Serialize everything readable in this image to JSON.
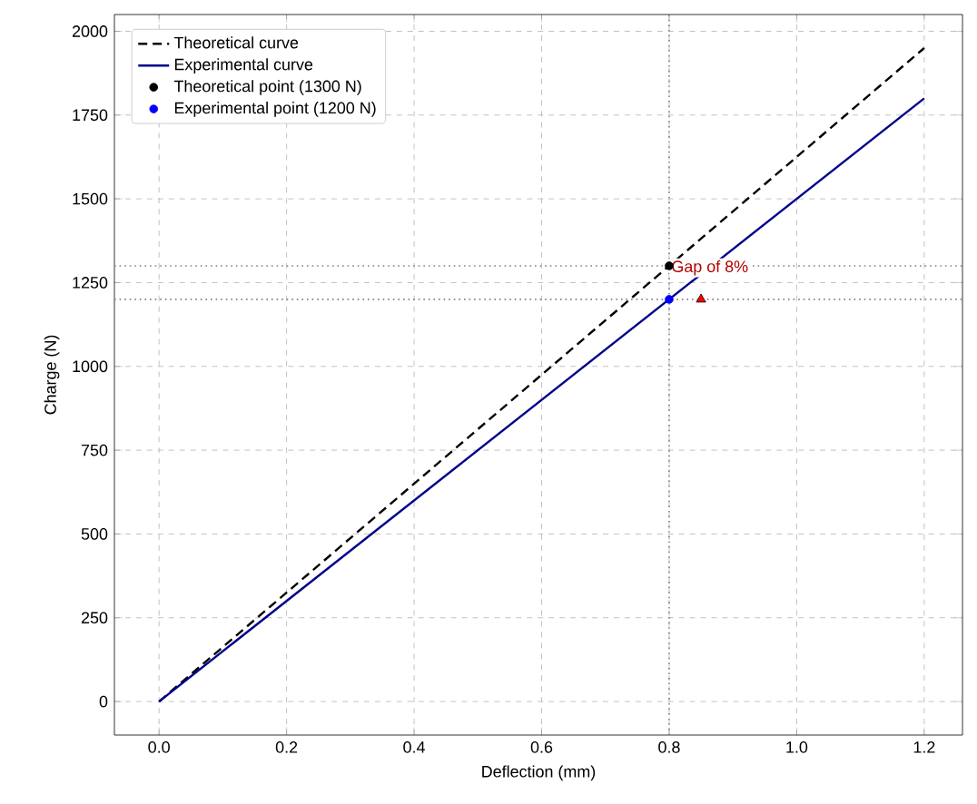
{
  "chart_data": {
    "type": "line",
    "xlabel": "Deflection (mm)",
    "ylabel": "Charge (N)",
    "xlim": [
      -0.07,
      1.26
    ],
    "ylim": [
      -100,
      2050
    ],
    "xticks": [
      {
        "value": 0,
        "label": "0.0"
      },
      {
        "value": 0.2,
        "label": "0.2"
      },
      {
        "value": 0.4,
        "label": "0.4"
      },
      {
        "value": 0.6,
        "label": "0.6"
      },
      {
        "value": 0.8,
        "label": "0.8"
      },
      {
        "value": 1.0,
        "label": "1.0"
      },
      {
        "value": 1.2,
        "label": "1.2"
      }
    ],
    "yticks": [
      0,
      250,
      500,
      750,
      1000,
      1250,
      1500,
      1750,
      2000
    ],
    "grid": true,
    "legend": "top left",
    "series": [
      {
        "name": "Theoretical curve",
        "line_style": "dashed",
        "color": "#000000",
        "x": [
          0,
          1.2
        ],
        "values": [
          0,
          1950
        ]
      },
      {
        "name": "Experimental curve",
        "line_style": "solid",
        "color": "#00008b",
        "x": [
          0,
          1.2
        ],
        "values": [
          0,
          1800
        ]
      },
      {
        "name": "Theoretical point (1300 N)",
        "type": "scatter",
        "marker": "circle",
        "color": "#000000",
        "x": [
          0.8
        ],
        "values": [
          1300
        ]
      },
      {
        "name": "Experimental point (1200 N)",
        "type": "scatter",
        "marker": "circle",
        "color": "#0000ff",
        "x": [
          0.8
        ],
        "values": [
          1200
        ]
      },
      {
        "type": "scatter",
        "marker": "triangle",
        "color": "#ff0000",
        "x": [
          0.85
        ],
        "values": [
          1200
        ]
      }
    ],
    "ref_lines": [
      {
        "axis": "x",
        "value": 0.8,
        "line_style": "dotted",
        "color": "#808080"
      },
      {
        "axis": "y",
        "value": 1300,
        "line_style": "dotted",
        "color": "#808080"
      },
      {
        "axis": "y",
        "value": 1200,
        "line_style": "dotted",
        "color": "#808080"
      }
    ],
    "annotations": [
      {
        "text": "Gap of 8%",
        "x": 0.8,
        "y": 1265
      }
    ]
  }
}
